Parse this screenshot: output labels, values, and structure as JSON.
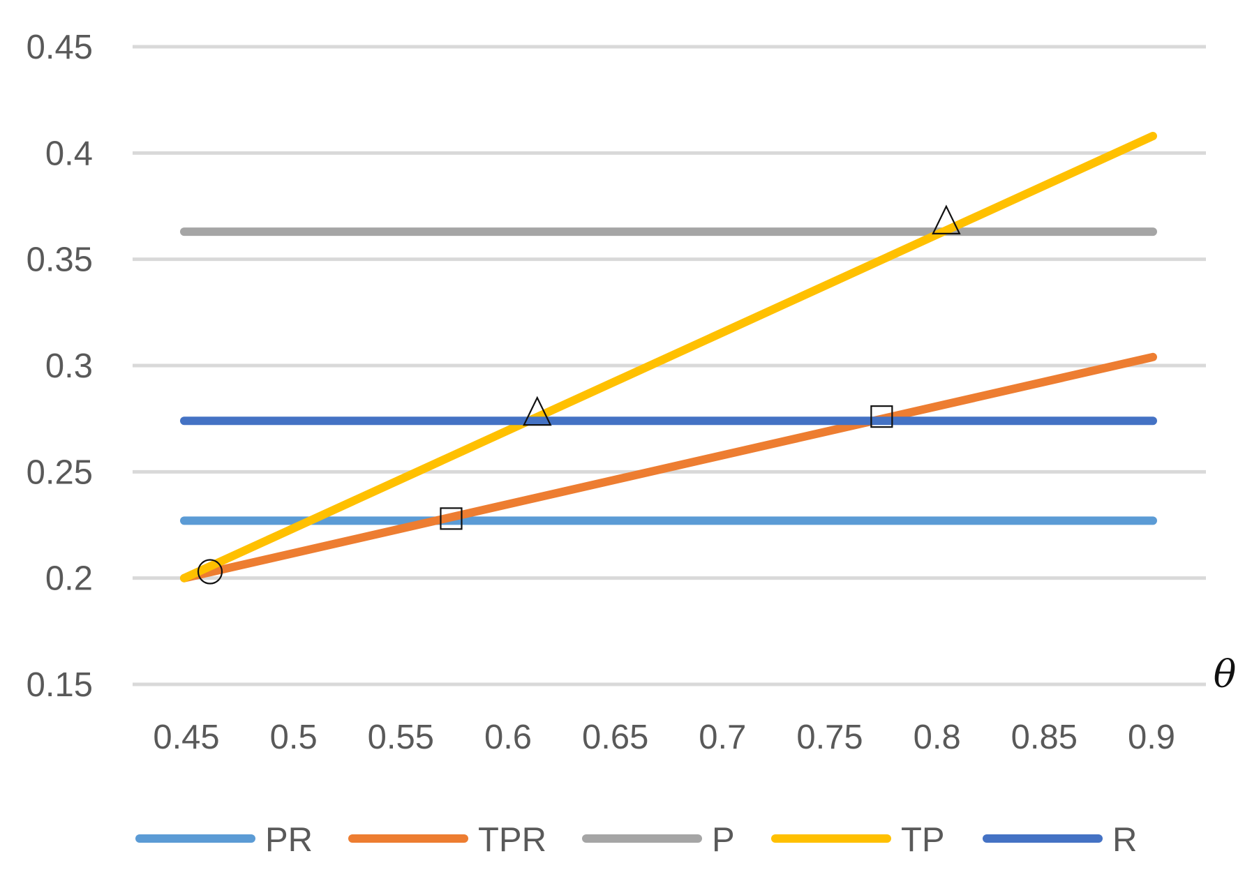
{
  "chart_data": {
    "type": "line",
    "title": "",
    "xlabel": "θ",
    "ylabel": "",
    "x_ticks": [
      "0.45",
      "0.5",
      "0.55",
      "0.6",
      "0.65",
      "0.7",
      "0.75",
      "0.8",
      "0.85",
      "0.9"
    ],
    "y_ticks": [
      "0.15",
      "0.2",
      "0.25",
      "0.3",
      "0.35",
      "0.4",
      "0.45"
    ],
    "xlim": [
      0.45,
      0.9
    ],
    "ylim": [
      0.15,
      0.45
    ],
    "grid": true,
    "legend_position": "bottom",
    "series": [
      {
        "name": "PR",
        "color": "#5B9BD5",
        "x": [
          0.45,
          0.9
        ],
        "y": [
          0.227,
          0.227
        ]
      },
      {
        "name": "TPR",
        "color": "#ED7D31",
        "x": [
          0.45,
          0.9
        ],
        "y": [
          0.2,
          0.304
        ]
      },
      {
        "name": "P",
        "color": "#A5A5A5",
        "x": [
          0.45,
          0.9
        ],
        "y": [
          0.363,
          0.363
        ]
      },
      {
        "name": "TP",
        "color": "#FFC000",
        "x": [
          0.45,
          0.9
        ],
        "y": [
          0.2,
          0.408
        ]
      },
      {
        "name": "R",
        "color": "#4472C4",
        "x": [
          0.45,
          0.9
        ],
        "y": [
          0.274,
          0.274
        ]
      }
    ],
    "markers": [
      {
        "shape": "circle",
        "x": 0.462,
        "y": 0.203
      },
      {
        "shape": "square",
        "x": 0.574,
        "y": 0.228
      },
      {
        "shape": "square",
        "x": 0.774,
        "y": 0.276
      },
      {
        "shape": "triangle",
        "x": 0.614,
        "y": 0.276
      },
      {
        "shape": "triangle",
        "x": 0.804,
        "y": 0.366
      }
    ]
  }
}
